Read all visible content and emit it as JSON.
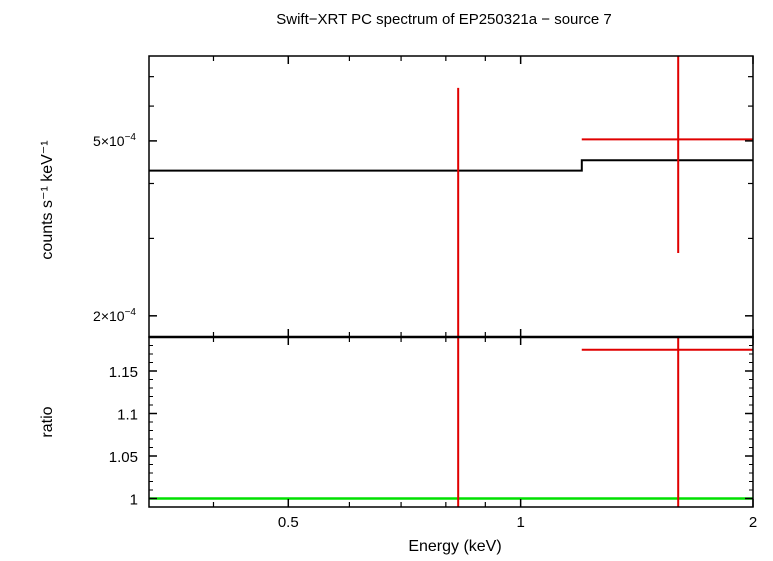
{
  "title": "Swift−XRT PC spectrum of EP250321a − source 7",
  "colors": {
    "data": "#e00000",
    "model": "#000000",
    "unity": "#00e000",
    "axis": "#000000"
  },
  "chart_data": [
    {
      "panel": "spectrum",
      "type": "line",
      "title": "Swift−XRT PC spectrum of EP250321a − source 7",
      "xscale": "log",
      "yscale": "log",
      "xlim": [
        0.33,
        2.0
      ],
      "ylim": [
        0.000179,
        0.00078
      ],
      "ylabel": "counts s⁻¹ keV⁻¹",
      "y_tick_labels": [
        {
          "value": 0.0005,
          "mantissa": "5×10",
          "exp": "−4"
        },
        {
          "value": 0.0002,
          "mantissa": "2×10",
          "exp": "−4"
        }
      ],
      "data_points": [
        {
          "x": 0.83,
          "xerr": [
            0.83,
            0.83
          ],
          "y": 7.25e-05,
          "yerr": [
            1e-05,
            0.00066
          ]
        },
        {
          "x": 1.6,
          "xerr": [
            1.2,
            2.0
          ],
          "y": 0.000504,
          "yerr": [
            0.000278,
            0.00078
          ]
        }
      ],
      "model_steps": [
        {
          "x0": 0.33,
          "x1": 1.2,
          "y": 0.000428
        },
        {
          "x0": 1.2,
          "x1": 2.0,
          "y": 0.000452
        }
      ]
    },
    {
      "panel": "ratio",
      "type": "line",
      "xscale": "log",
      "xlim": [
        0.33,
        2.0
      ],
      "ylim": [
        0.99,
        1.19
      ],
      "xlabel": "Energy (keV)",
      "ylabel": "ratio",
      "x_ticks": [
        0.5,
        1,
        2
      ],
      "x_tick_labels": [
        "0.5",
        "1",
        "2"
      ],
      "y_ticks": [
        1,
        1.05,
        1.1,
        1.15
      ],
      "y_tick_labels": [
        "1",
        "1.05",
        "1.1",
        "1.15"
      ],
      "data_points": [
        {
          "x": 0.83,
          "xerr": [
            0.83,
            0.83
          ],
          "y": 0.16,
          "yerr": [
            0.0,
            1.19
          ]
        },
        {
          "x": 1.6,
          "xerr": [
            1.2,
            2.0
          ],
          "y": 1.175,
          "yerr": [
            0.99,
            1.19
          ]
        }
      ],
      "unity_line": 1
    }
  ]
}
